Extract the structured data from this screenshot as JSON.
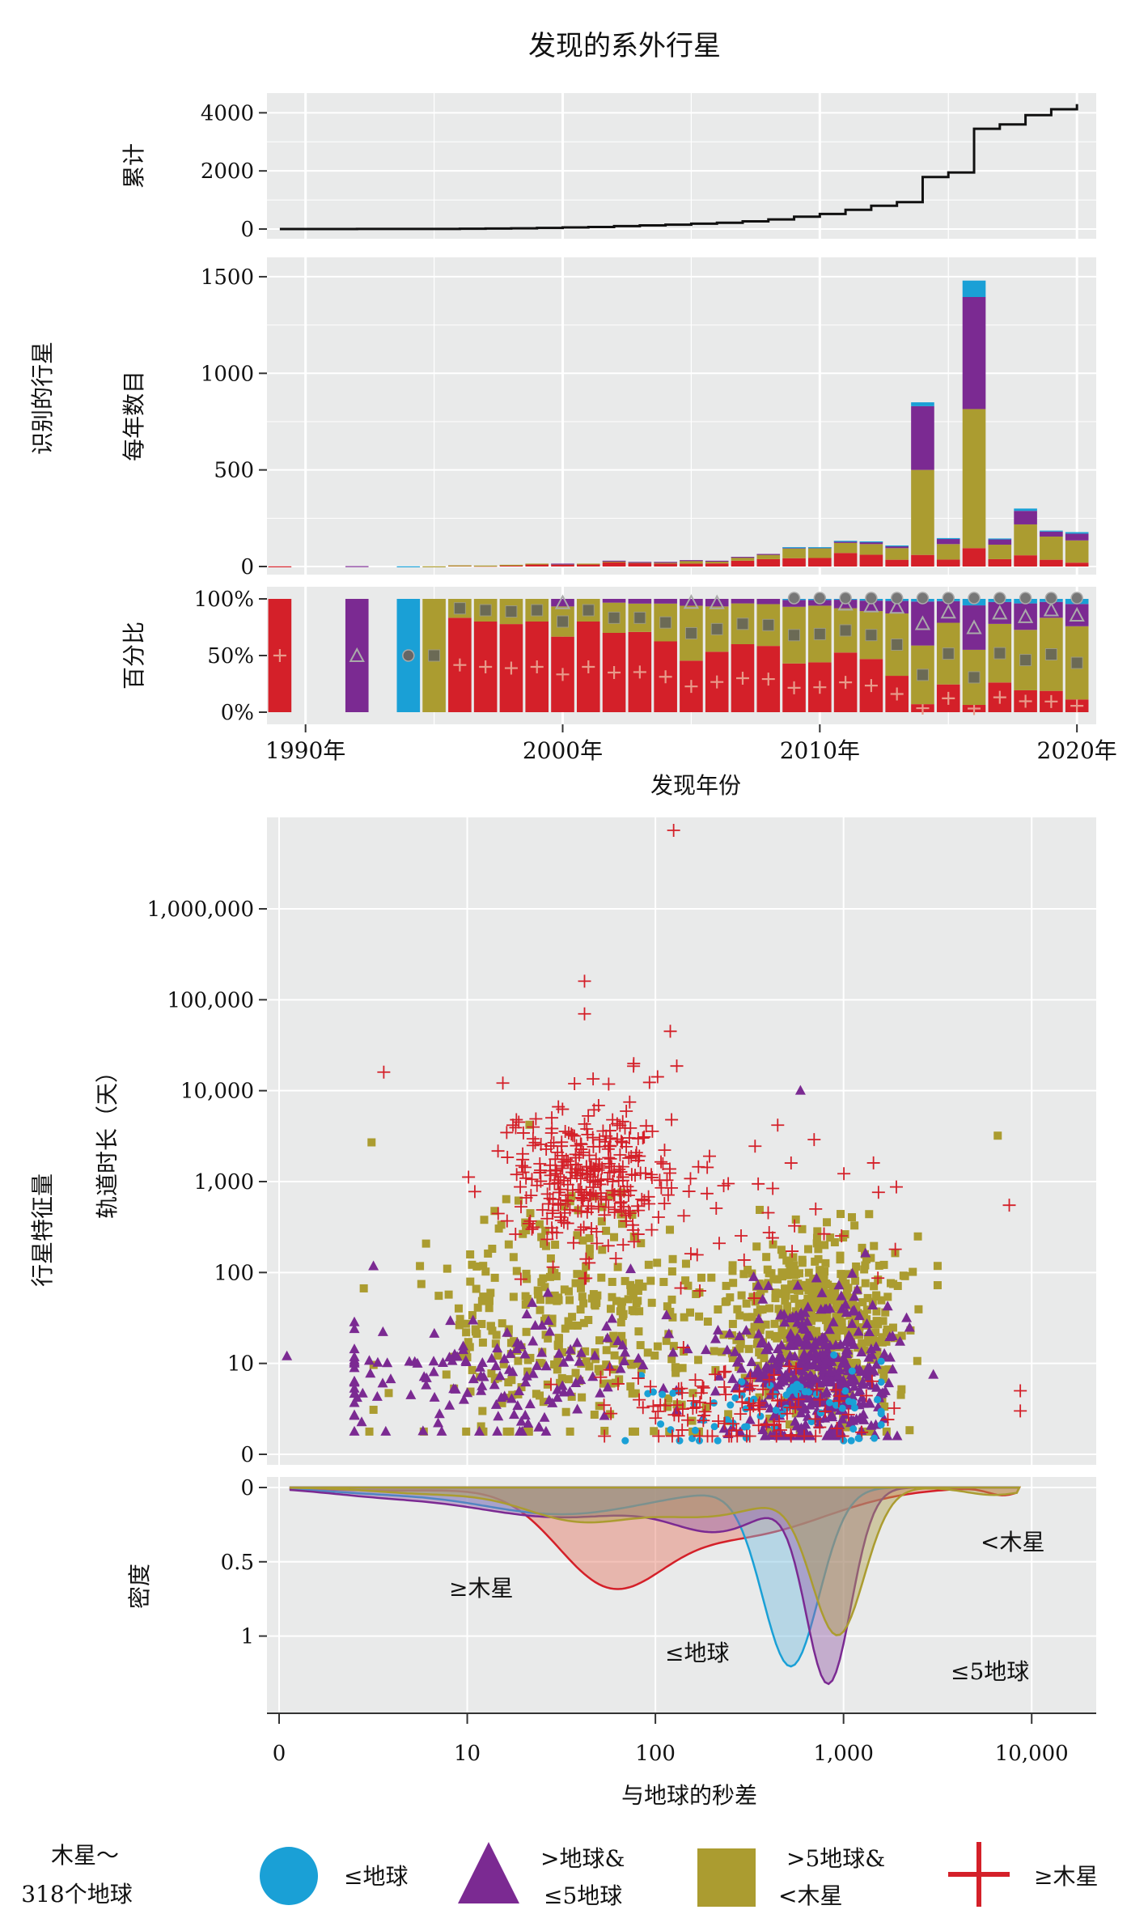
{
  "chart_data": {
    "title": "发现的系外行星",
    "outer_labels": {
      "identified": "识别的行星",
      "features": "行星特征量"
    },
    "top": {
      "xlabel": "发现年份",
      "x_ticks": [
        {
          "value": 1990,
          "label": "1990年"
        },
        {
          "value": 2000,
          "label": "2000年"
        },
        {
          "value": 2010,
          "label": "2010年"
        },
        {
          "value": 2020,
          "label": "2020年"
        }
      ],
      "cumulative": {
        "type": "line",
        "ylabel": "累计",
        "ylim": [
          0,
          4400
        ],
        "y_ticks": [
          0,
          2000,
          4000
        ],
        "years": [
          1989,
          1990,
          1991,
          1992,
          1993,
          1994,
          1995,
          1996,
          1997,
          1998,
          1999,
          2000,
          2001,
          2002,
          2003,
          2004,
          2005,
          2006,
          2007,
          2008,
          2009,
          2010,
          2011,
          2012,
          2013,
          2014,
          2015,
          2016,
          2017,
          2018,
          2019,
          2020
        ],
        "values": [
          1,
          1,
          1,
          3,
          3,
          4,
          5,
          11,
          16,
          25,
          40,
          55,
          70,
          100,
          125,
          150,
          185,
          215,
          265,
          330,
          425,
          520,
          660,
          800,
          925,
          1790,
          1945,
          3450,
          3600,
          3920,
          4120,
          4300
        ]
      },
      "per_year": {
        "type": "bar",
        "stacked": true,
        "ylabel": "每年数目",
        "ylim": [
          0,
          1550
        ],
        "y_ticks": [
          0,
          500,
          1000,
          1500
        ],
        "years": [
          1989,
          1990,
          1991,
          1992,
          1993,
          1994,
          1995,
          1996,
          1997,
          1998,
          1999,
          2000,
          2001,
          2002,
          2003,
          2004,
          2005,
          2006,
          2007,
          2008,
          2009,
          2010,
          2011,
          2012,
          2013,
          2014,
          2015,
          2016,
          2017,
          2018,
          2019,
          2020
        ],
        "series": [
          {
            "name": "≥木星",
            "values": [
              1,
              0,
              0,
              0,
              0,
              0,
              0,
              5,
              4,
              7,
              12,
              10,
              12,
              21,
              17,
              15,
              15,
              16,
              30,
              38,
              43,
              44,
              70,
              61,
              35,
              60,
              36,
              95,
              38,
              58,
              35,
              20
            ]
          },
          {
            "name": "<木星",
            "values": [
              0,
              0,
              0,
              0,
              0,
              0,
              1,
              1,
              1,
              2,
              3,
              4,
              3,
              8,
              6,
              8,
              16,
              12,
              18,
              24,
              50,
              50,
              52,
              55,
              60,
              440,
              80,
              720,
              75,
              160,
              120,
              115
            ]
          },
          {
            "name": ">地球&≤5地球",
            "values": [
              0,
              0,
              0,
              2,
              0,
              0,
              0,
              0,
              0,
              0,
              0,
              1,
              0,
              1,
              1,
              1,
              2,
              2,
              2,
              3,
              6,
              5,
              10,
              12,
              12,
              330,
              28,
              580,
              28,
              70,
              26,
              35
            ]
          },
          {
            "name": "≤地球",
            "values": [
              0,
              0,
              0,
              0,
              0,
              1,
              0,
              0,
              0,
              0,
              0,
              0,
              0,
              0,
              0,
              0,
              0,
              0,
              0,
              0,
              1,
              1,
              1,
              2,
              2,
              20,
              3,
              85,
              4,
              12,
              5,
              8
            ]
          }
        ]
      },
      "percent": {
        "type": "bar",
        "stacked": true,
        "normalized": true,
        "ylabel": "百分比",
        "y_ticks": [
          0,
          50,
          100
        ],
        "y_tick_labels": [
          "0%",
          "50%",
          "100%"
        ]
      }
    },
    "scatter": {
      "type": "scatter",
      "xlabel": "与地球的秒差",
      "ylabel": "轨道时长（天）",
      "x_scale": "log",
      "y_scale": "log",
      "x_ticks": [
        {
          "value": 1,
          "label": "0"
        },
        {
          "value": 10,
          "label": "10"
        },
        {
          "value": 100,
          "label": "100"
        },
        {
          "value": 1000,
          "label": "1,000"
        },
        {
          "value": 10000,
          "label": "10,000"
        }
      ],
      "y_ticks": [
        {
          "value": 1,
          "label": "0"
        },
        {
          "value": 10,
          "label": "10"
        },
        {
          "value": 100,
          "label": "100"
        },
        {
          "value": 1000,
          "label": "1,000"
        },
        {
          "value": 10000,
          "label": "10,000"
        },
        {
          "value": 100000,
          "label": "100,000"
        },
        {
          "value": 1000000,
          "label": "1,000,000"
        }
      ],
      "notable_points": [
        {
          "series": "≥木星",
          "x": 125,
          "y": 7300000
        },
        {
          "series": "≥木星",
          "x": 42,
          "y": 160000
        },
        {
          "series": "≥木星",
          "x": 42,
          "y": 70000
        },
        {
          "series": "≥木星",
          "x": 120,
          "y": 45000
        },
        {
          "series": "≥木星",
          "x": 3.6,
          "y": 16000
        },
        {
          "series": "≥木星",
          "x": 8700,
          "y": 5
        },
        {
          "series": "≥木星",
          "x": 8700,
          "y": 3
        },
        {
          "series": "≥木星",
          "x": 7600,
          "y": 550
        },
        {
          "series": "<木星",
          "x": 3.1,
          "y": 2700
        },
        {
          "series": "<木星",
          "x": 6600,
          "y": 3200
        },
        {
          "series": ">地球&≤5地球",
          "x": 1.1,
          "y": 12
        },
        {
          "series": ">地球&≤5地球",
          "x": 590,
          "y": 10000
        },
        {
          "series": "≤地球",
          "x": 1200,
          "y": 1.5
        }
      ]
    },
    "density": {
      "type": "area",
      "ylabel": "密度",
      "y_ticks": [
        0,
        0.5,
        1
      ],
      "y_tick_labels": [
        "0",
        "0.5",
        "1"
      ],
      "curves": [
        {
          "name": "≥木星",
          "label": "≥木星",
          "peak_x": 60,
          "peak_density": 0.6
        },
        {
          "name": "≤地球",
          "label": "≤地球",
          "peak_x": 520,
          "peak_density": 1.2
        },
        {
          "name": ">地球&≤5地球",
          "label": "≤5地球",
          "peak_x": 840,
          "peak_density": 1.35
        },
        {
          "name": "<木星",
          "label": "<木星",
          "peak_x": 960,
          "peak_density": 1.05
        }
      ]
    },
    "legend": {
      "placement": "bottom",
      "title_line1": "木星～",
      "title_line2": "318个地球",
      "items": [
        {
          "name": "≤地球",
          "label1": "≤地球",
          "label2": "",
          "color": "#1aa0d6",
          "icon": "circle-icon"
        },
        {
          "name": ">地球&≤5地球",
          "label1": ">地球&",
          "label2": "≤5地球",
          "color": "#7b2a92",
          "icon": "triangle-icon"
        },
        {
          "name": "<木星",
          "label1": ">5地球&",
          "label2": "<木星",
          "color": "#ab9c30",
          "icon": "square-icon"
        },
        {
          "name": "≥木星",
          "label1": "≥木星",
          "label2": "",
          "color": "#d42029",
          "icon": "plus-icon"
        }
      ]
    },
    "colors": {
      "earth": "#1aa0d6",
      "super_earth": "#7b2a92",
      "neptune": "#ab9c30",
      "jupiter": "#d42029",
      "panel": "#e9eaea",
      "grid": "#ffffff"
    }
  }
}
